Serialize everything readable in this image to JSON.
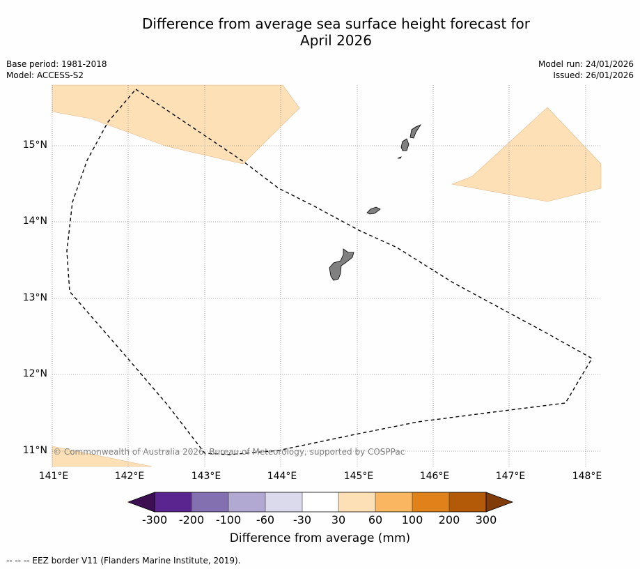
{
  "title_line1": "Difference from average sea surface height forecast for",
  "title_line2": "April 2026",
  "base_period": "Base period: 1981-2018",
  "model": "Model: ACCESS-S2",
  "model_run": "Model run: 24/01/2026",
  "issued": "Issued: 26/01/2026",
  "map": {
    "lon_ticks": [
      "141°E",
      "142°E",
      "143°E",
      "144°E",
      "145°E",
      "146°E",
      "147°E",
      "148°E"
    ],
    "lat_ticks": [
      "15°N",
      "14°N",
      "13°N",
      "12°N",
      "11°N"
    ],
    "extent": {
      "lon_min": 141,
      "lon_max": 148.2,
      "lat_min": 10.8,
      "lat_max": 15.8
    },
    "colors": {
      "land": "#808080",
      "anomaly_30_60": "#fde0b6",
      "eez": "#000000"
    }
  },
  "copyright": "© Commonwealth of Australia 2026, Bureau of Meteorology, supported by COSPPac",
  "colorbar": {
    "ticks": [
      "-300",
      "-200",
      "-100",
      "-60",
      "-30",
      "30",
      "60",
      "100",
      "200",
      "300"
    ],
    "colors": [
      "#3b0f52",
      "#5b2590",
      "#8270b0",
      "#b2a9d3",
      "#dbdaec",
      "#ffffff",
      "#fde0b6",
      "#fbb661",
      "#e08219",
      "#b35a08",
      "#7f3b08"
    ],
    "label": "Difference from average (mm)"
  },
  "footer": "--  --  -- EEZ border V11 (Flanders Marine Institute, 2019)."
}
